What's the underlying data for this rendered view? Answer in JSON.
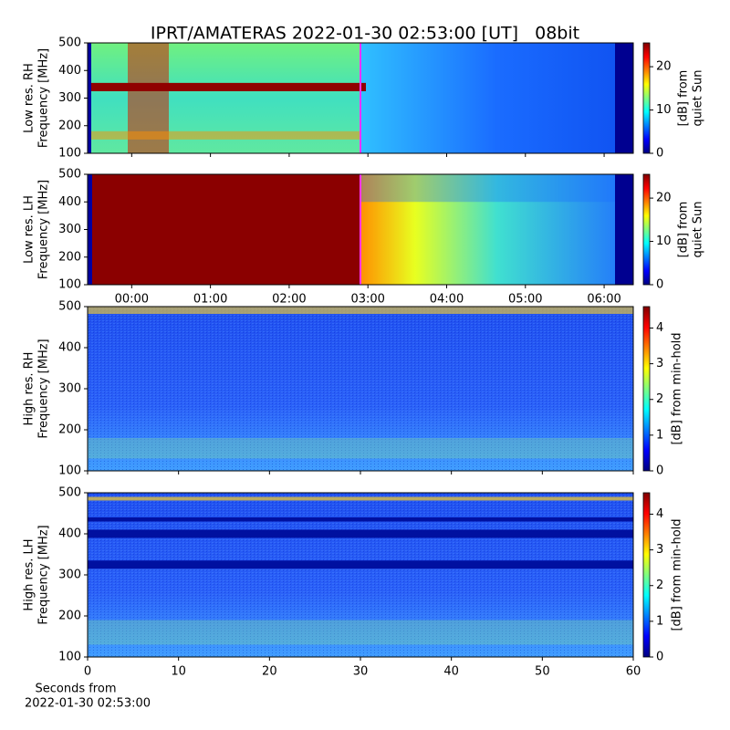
{
  "chart_data": [
    {
      "type": "heatmap",
      "title": "IPRT/AMATERAS 2022-01-30 02:53:00 [UT]   08bit",
      "ylabel": [
        "Low res. RH",
        "Frequency [MHz]"
      ],
      "colorbar_label": [
        "[dB] from",
        "quiet Sun"
      ],
      "ylim": [
        100,
        500
      ],
      "yticks": [
        100,
        200,
        300,
        400,
        500
      ],
      "zlim": [
        0,
        25.5
      ],
      "zticks": [
        0,
        10,
        20
      ],
      "xlim": [
        -0.56,
        6.37
      ],
      "xticks": [
        0,
        1,
        2,
        3,
        4,
        5,
        6
      ]
    },
    {
      "type": "heatmap",
      "ylabel": [
        "Low res. LH",
        "Frequency [MHz]"
      ],
      "colorbar_label": [
        "[dB] from",
        "quiet Sun"
      ],
      "ylim": [
        100,
        500
      ],
      "yticks": [
        100,
        200,
        300,
        400,
        500
      ],
      "zlim": [
        0,
        25.5
      ],
      "zticks": [
        0,
        10,
        20
      ],
      "xlim": [
        -0.56,
        6.37
      ],
      "xticks": [
        {
          "value": 0,
          "label": "00:00"
        },
        {
          "value": 1,
          "label": "01:00"
        },
        {
          "value": 2,
          "label": "02:00"
        },
        {
          "value": 3,
          "label": "03:00"
        },
        {
          "value": 4,
          "label": "04:00"
        },
        {
          "value": 5,
          "label": "05:00"
        },
        {
          "value": 6,
          "label": "06:00"
        }
      ]
    },
    {
      "type": "heatmap",
      "ylabel": [
        "High res. RH",
        "Frequency [MHz]"
      ],
      "colorbar_label": [
        "[dB] from min-hold"
      ],
      "ylim": [
        100,
        500
      ],
      "yticks": [
        100,
        200,
        300,
        400,
        500
      ],
      "zlim": [
        0,
        4.6
      ],
      "zticks": [
        0,
        1,
        2,
        3,
        4
      ],
      "xlim": [
        0,
        60
      ],
      "xticks": [
        0,
        10,
        20,
        30,
        40,
        50,
        60
      ]
    },
    {
      "type": "heatmap",
      "ylabel": [
        "High res. LH",
        "Frequency [MHz]"
      ],
      "colorbar_label": [
        "[dB] from min-hold"
      ],
      "xlabel": [
        "Seconds from",
        "2022-01-30 02:53:00"
      ],
      "ylim": [
        100,
        500
      ],
      "yticks": [
        100,
        200,
        300,
        400,
        500
      ],
      "zlim": [
        0,
        4.6
      ],
      "zticks": [
        0,
        1,
        2,
        3,
        4
      ],
      "xlim": [
        0,
        60
      ],
      "xticks": [
        0,
        10,
        20,
        30,
        40,
        50,
        60
      ]
    }
  ]
}
